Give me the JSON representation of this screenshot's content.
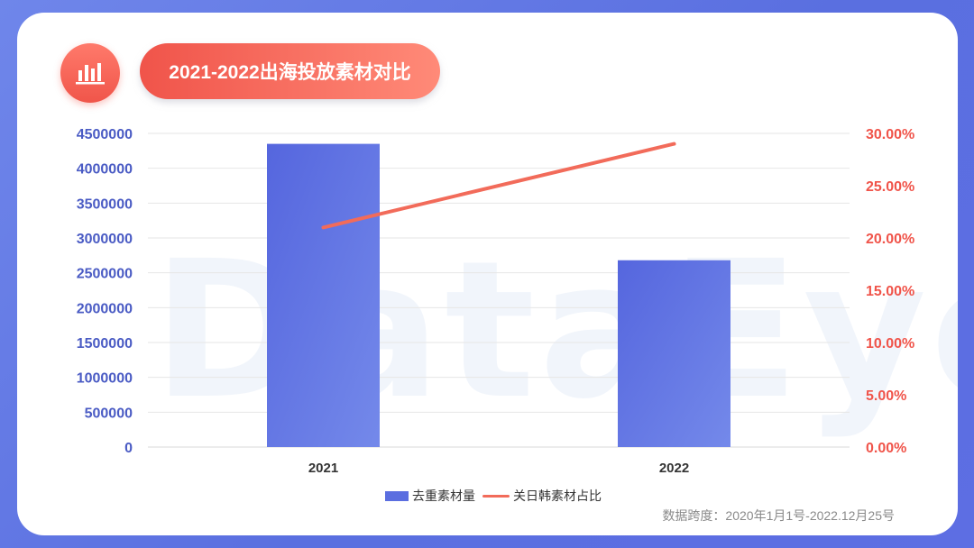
{
  "header": {
    "title": "2021-2022出海投放素材对比",
    "icon": "bar-chart-icon"
  },
  "watermark": "DataEye",
  "source_note": "数据跨度：2020年1月1号-2022.12月25号",
  "colors": {
    "bar": "#5b6ee0",
    "line": "#f26b5a",
    "left_axis": "#4a5bc4",
    "right_axis": "#f0544a"
  },
  "chart_data": {
    "type": "bar",
    "categories": [
      "2021",
      "2022"
    ],
    "series": [
      {
        "name": "去重素材量",
        "type": "bar",
        "axis": "left",
        "values": [
          4350000,
          2680000
        ]
      },
      {
        "name": "关日韩素材占比",
        "type": "line",
        "axis": "right",
        "values": [
          21.0,
          29.0
        ]
      }
    ],
    "left_axis": {
      "ylim": [
        0,
        4500000
      ],
      "ticks": [
        "0",
        "500000",
        "1000000",
        "1500000",
        "2000000",
        "2500000",
        "3000000",
        "3500000",
        "4000000",
        "4500000"
      ]
    },
    "right_axis": {
      "ylim": [
        0,
        30
      ],
      "ticks": [
        "0.00%",
        "5.00%",
        "10.00%",
        "15.00%",
        "20.00%",
        "25.00%",
        "30.00%"
      ]
    },
    "grid": true,
    "legend": "bottom-center"
  }
}
